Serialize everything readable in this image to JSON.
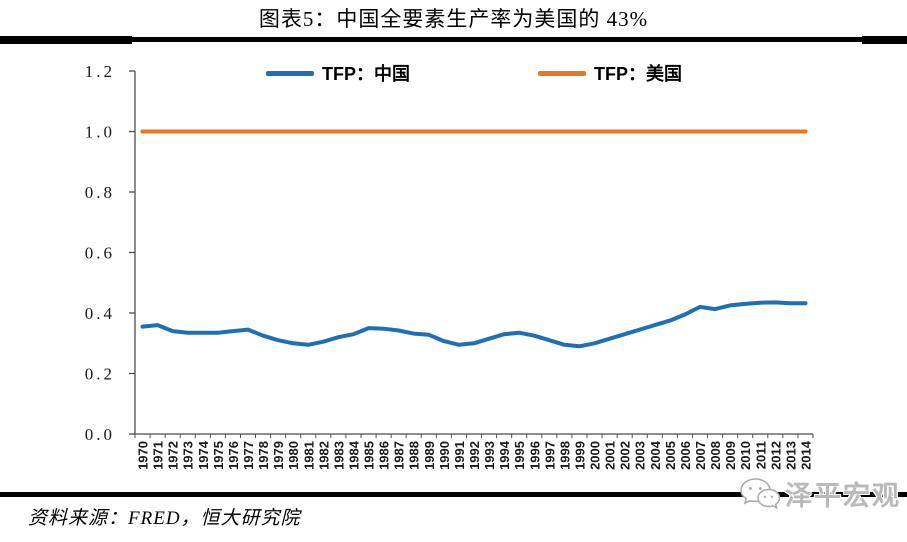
{
  "title": "图表5：中国全要素生产率为美国的 43%",
  "legend": [
    {
      "label": "TFP：中国",
      "color": "#1F6FB5"
    },
    {
      "label": "TFP：美国",
      "color": "#E87722"
    }
  ],
  "source_note": "资料来源：FRED，恒大研究院",
  "watermark": {
    "icon": "wechat-icon",
    "text": "泽平宏观"
  },
  "colors": {
    "china_line": "#1F6FB5",
    "usa_line": "#E87722",
    "axis": "#4d4d4d",
    "label_text": "#1a1a1a"
  },
  "chart_data": {
    "type": "line",
    "title": "图表5：中国全要素生产率为美国的 43%",
    "xlabel": "",
    "ylabel": "",
    "x": [
      1970,
      1971,
      1972,
      1973,
      1974,
      1975,
      1976,
      1977,
      1978,
      1979,
      1980,
      1981,
      1982,
      1983,
      1984,
      1985,
      1986,
      1987,
      1988,
      1989,
      1990,
      1991,
      1992,
      1993,
      1994,
      1995,
      1996,
      1997,
      1998,
      1999,
      2000,
      2001,
      2002,
      2003,
      2004,
      2005,
      2006,
      2007,
      2008,
      2009,
      2010,
      2011,
      2012,
      2013,
      2014
    ],
    "series": [
      {
        "name": "TFP：中国",
        "color": "#1F6FB5",
        "values": [
          0.355,
          0.36,
          0.34,
          0.335,
          0.335,
          0.335,
          0.34,
          0.345,
          0.325,
          0.31,
          0.3,
          0.295,
          0.305,
          0.32,
          0.33,
          0.35,
          0.348,
          0.342,
          0.332,
          0.328,
          0.307,
          0.295,
          0.3,
          0.315,
          0.33,
          0.335,
          0.325,
          0.31,
          0.295,
          0.29,
          0.3,
          0.315,
          0.33,
          0.345,
          0.36,
          0.375,
          0.395,
          0.42,
          0.413,
          0.425,
          0.43,
          0.434,
          0.435,
          0.432,
          0.432
        ]
      },
      {
        "name": "TFP：美国",
        "color": "#E87722",
        "values": [
          1.0,
          1.0,
          1.0,
          1.0,
          1.0,
          1.0,
          1.0,
          1.0,
          1.0,
          1.0,
          1.0,
          1.0,
          1.0,
          1.0,
          1.0,
          1.0,
          1.0,
          1.0,
          1.0,
          1.0,
          1.0,
          1.0,
          1.0,
          1.0,
          1.0,
          1.0,
          1.0,
          1.0,
          1.0,
          1.0,
          1.0,
          1.0,
          1.0,
          1.0,
          1.0,
          1.0,
          1.0,
          1.0,
          1.0,
          1.0,
          1.0,
          1.0,
          1.0,
          1.0,
          1.0
        ]
      }
    ],
    "ylim": [
      0.0,
      1.2
    ],
    "yticks": [
      0.0,
      0.2,
      0.4,
      0.6,
      0.8,
      1.0,
      1.2
    ],
    "ytick_labels": [
      "0.0",
      "0.2",
      "0.4",
      "0.6",
      "0.8",
      "1.0",
      "1.2"
    ],
    "grid": false,
    "legend_position": "top"
  }
}
